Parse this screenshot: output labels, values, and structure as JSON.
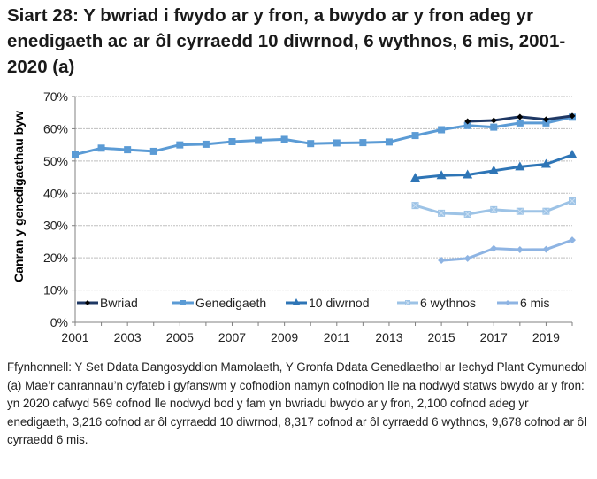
{
  "title": "Siart 28: Y bwriad i fwydo ar y fron, a bwydo ar y fron adeg yr enedigaeth ac ar ôl cyrraedd 10 diwrnod, 6 wythnos, 6 mis, 2001-2020 (a)",
  "footnotes": {
    "source": "Ffynhonnell: Y Set Ddata Dangosyddion Mamolaeth, Y Gronfa Ddata Genedlaethol ar Iechyd Plant Cymunedol",
    "note_a": "(a) Mae’r canrannau’n cyfateb i gyfanswm y cofnodion namyn cofnodion lle na nodwyd statws bwydo ar y fron: yn 2020 cafwyd 569 cofnod lle nodwyd bod y fam yn bwriadu bwydo ar y fron, 2,100 cofnod adeg yr enedigaeth, 3,216 cofnod ar ôl cyrraedd 10 diwrnod, 8,317 cofnod ar ôl cyrraedd 6 wythnos, 9,678 cofnod ar ôl cyrraedd 6 mis."
  },
  "chart_data": {
    "type": "line",
    "title": "Siart 28: Y bwriad i fwydo ar y fron, a bwydo ar y fron adeg yr enedigaeth ac ar ôl cyrraedd 10 diwrnod, 6 wythnos, 6 mis, 2001-2020 (a)",
    "xlabel": "",
    "ylabel": "Canran y genedigaethau byw",
    "x": [
      2001,
      2002,
      2003,
      2004,
      2005,
      2006,
      2007,
      2008,
      2009,
      2010,
      2011,
      2012,
      2013,
      2014,
      2015,
      2016,
      2017,
      2018,
      2019,
      2020
    ],
    "x_tick_labels": [
      "2001",
      "2003",
      "2005",
      "2007",
      "2009",
      "2011",
      "2013",
      "2015",
      "2017",
      "2019"
    ],
    "y_tick_labels": [
      "0%",
      "10%",
      "20%",
      "30%",
      "40%",
      "50%",
      "60%",
      "70%"
    ],
    "ylim": [
      0,
      70
    ],
    "grid": true,
    "legend_position": "bottom-inside",
    "series": [
      {
        "name": "Bwriad",
        "color": "#1f3864",
        "marker": "diamond",
        "marker_color": "#000000",
        "values": [
          null,
          null,
          null,
          null,
          null,
          null,
          null,
          null,
          null,
          null,
          null,
          null,
          null,
          null,
          null,
          62.3,
          62.6,
          63.7,
          62.9,
          64.0
        ]
      },
      {
        "name": "Genedigaeth",
        "color": "#5b9bd5",
        "marker": "square",
        "marker_color": "#5b9bd5",
        "values": [
          52.0,
          54.0,
          53.5,
          53.0,
          55.0,
          55.2,
          56.0,
          56.4,
          56.7,
          55.4,
          55.6,
          55.7,
          55.9,
          57.9,
          59.7,
          61.0,
          60.5,
          61.8,
          61.8,
          63.6
        ]
      },
      {
        "name": "10 diwrnod",
        "color": "#2e75b6",
        "marker": "triangle",
        "marker_color": "#2e75b6",
        "values": [
          null,
          null,
          null,
          null,
          null,
          null,
          null,
          null,
          null,
          null,
          null,
          null,
          null,
          44.7,
          45.5,
          45.7,
          47.0,
          48.2,
          49.0,
          51.9
        ]
      },
      {
        "name": "6 wythnos",
        "color": "#9dc3e6",
        "marker": "square-x",
        "marker_color": "#9dc3e6",
        "values": [
          null,
          null,
          null,
          null,
          null,
          null,
          null,
          null,
          null,
          null,
          null,
          null,
          null,
          36.2,
          33.8,
          33.5,
          34.9,
          34.4,
          34.4,
          37.6
        ]
      },
      {
        "name": "6 mis",
        "color": "#8eb4e3",
        "marker": "diamond",
        "marker_color": "#8eb4e3",
        "values": [
          null,
          null,
          null,
          null,
          null,
          null,
          null,
          null,
          null,
          null,
          null,
          null,
          null,
          null,
          19.2,
          19.8,
          22.9,
          22.5,
          22.6,
          25.5
        ]
      }
    ]
  }
}
